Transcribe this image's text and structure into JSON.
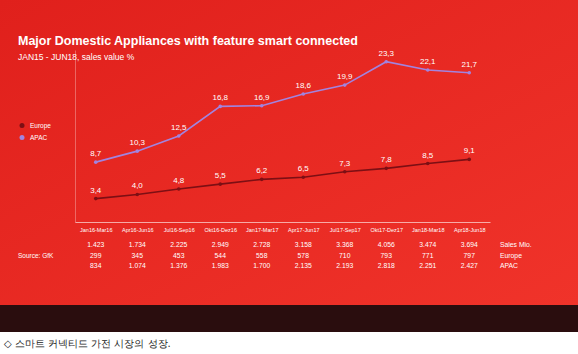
{
  "chart_data": {
    "type": "line",
    "title": "Major Domestic Appliances with feature smart connected",
    "subtitle": "JAN15 - JUN18, sales value %",
    "categories": [
      "Jan16-Mar16",
      "Apr16-Jun16",
      "Jul16-Sep16",
      "Okt16-Dez16",
      "Jan17-Mar17",
      "Apr17-Jun17",
      "Jul17-Sep17",
      "Okt17-Dez17",
      "Jan18-Mar18",
      "Apr18-Jun18"
    ],
    "series": [
      {
        "name": "Europe",
        "color": "#7d0f14",
        "marker": "circle",
        "line_style": "solid",
        "values": [
          3.4,
          4.0,
          4.8,
          5.5,
          6.2,
          6.5,
          7.3,
          7.8,
          8.5,
          9.1
        ],
        "value_labels": [
          "3,4",
          "4,0",
          "4,8",
          "5,5",
          "6,2",
          "6,5",
          "7,3",
          "7,8",
          "8,5",
          "9,1"
        ]
      },
      {
        "name": "APAC",
        "color": "#a184e0",
        "marker": "circle",
        "line_style": "solid",
        "values": [
          8.7,
          10.3,
          12.5,
          16.8,
          16.9,
          18.6,
          19.9,
          23.3,
          22.1,
          21.7
        ],
        "value_labels": [
          "8,7",
          "10,3",
          "12,5",
          "16,8",
          "16,9",
          "18,6",
          "19,9",
          "23,3",
          "22,1",
          "21,7"
        ]
      }
    ],
    "ylim": [
      0,
      25
    ],
    "yticks": [],
    "tick_labels": "x",
    "data_labels": true,
    "legend": "left",
    "sales_table": {
      "rows": [
        {
          "label": "Sales Mio.",
          "values": [
            1423,
            1734,
            2225,
            2949,
            2728,
            3158,
            3368,
            4056,
            3474,
            3694
          ],
          "value_labels": [
            "1.423",
            "1.734",
            "2.225",
            "2.949",
            "2.728",
            "3.158",
            "3.368",
            "4.056",
            "3.474",
            "3.694"
          ]
        },
        {
          "label": "Europe",
          "values": [
            299,
            345,
            453,
            544,
            558,
            578,
            710,
            793,
            771,
            797
          ],
          "value_labels": [
            "299",
            "345",
            "453",
            "544",
            "558",
            "578",
            "710",
            "793",
            "771",
            "797"
          ]
        },
        {
          "label": "APAC",
          "values": [
            834,
            1074,
            1376,
            1983,
            1700,
            2135,
            2193,
            2818,
            2251,
            2427
          ],
          "value_labels": [
            "834",
            "1.074",
            "1.376",
            "1.983",
            "1.700",
            "2.135",
            "2.193",
            "2.818",
            "2.251",
            "2.427"
          ]
        }
      ]
    },
    "source": "Source: GfK",
    "caption": "◇ 스마트 커넥티드 가전 시장의 성장."
  }
}
